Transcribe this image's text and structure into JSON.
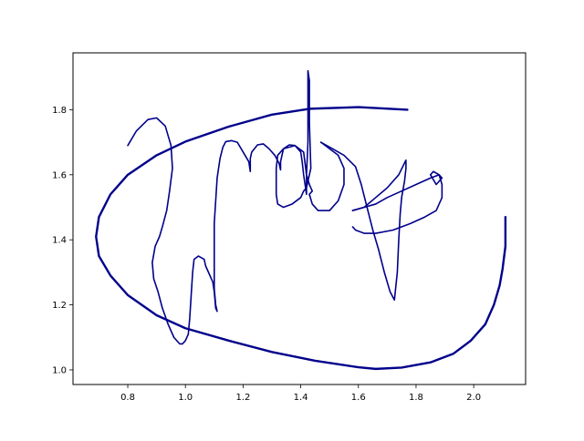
{
  "chart_data": {
    "type": "line",
    "title": "",
    "xlabel": "",
    "ylabel": "",
    "xlim": [
      0.61,
      2.18
    ],
    "ylim": [
      0.955,
      1.975
    ],
    "x_ticks": [
      0.8,
      1.0,
      1.2,
      1.4,
      1.6,
      1.8,
      2.0
    ],
    "x_tick_labels": [
      "0.8",
      "1.0",
      "1.2",
      "1.4",
      "1.6",
      "1.8",
      "2.0"
    ],
    "y_ticks": [
      1.0,
      1.2,
      1.4,
      1.6,
      1.8
    ],
    "y_tick_labels": [
      "1.0",
      "1.2",
      "1.4",
      "1.6",
      "1.8"
    ],
    "grid": false,
    "legend": "none",
    "colors": {
      "stroke": "#00008b",
      "axes": "#000000",
      "background": "#ffffff"
    },
    "series": [
      {
        "style": "thick",
        "x": [
          1.77,
          1.6,
          1.43,
          1.3,
          1.15,
          1.0,
          0.9,
          0.8,
          0.74,
          0.7,
          0.69,
          0.7,
          0.74,
          0.8,
          0.9,
          1.0,
          1.15,
          1.3,
          1.45,
          1.6,
          1.66,
          1.75,
          1.85,
          1.93,
          1.99,
          2.04,
          2.07,
          2.09,
          2.1,
          2.11,
          2.11
        ],
        "y": [
          1.8,
          1.808,
          1.803,
          1.785,
          1.748,
          1.702,
          1.66,
          1.6,
          1.54,
          1.47,
          1.41,
          1.35,
          1.29,
          1.23,
          1.168,
          1.128,
          1.09,
          1.055,
          1.028,
          1.008,
          1.003,
          1.007,
          1.023,
          1.05,
          1.09,
          1.14,
          1.2,
          1.26,
          1.31,
          1.38,
          1.47
        ]
      },
      {
        "style": "thin",
        "x": [
          0.8,
          0.83,
          0.87,
          0.9,
          0.93,
          0.95,
          0.955,
          0.945,
          0.935,
          0.92,
          0.91,
          0.895,
          0.885,
          0.89,
          0.905,
          0.92,
          0.94,
          0.96,
          0.98,
          0.99,
          1.0,
          1.01,
          1.015,
          1.02,
          1.025,
          1.03,
          1.045,
          1.065,
          1.07,
          1.08,
          1.095,
          1.1,
          1.105,
          1.11,
          1.105,
          1.1,
          1.1,
          1.1,
          1.1,
          1.105,
          1.11,
          1.12,
          1.13,
          1.14,
          1.16,
          1.18,
          1.2,
          1.22,
          1.225,
          1.225,
          1.23,
          1.25,
          1.27,
          1.29,
          1.31,
          1.325,
          1.33,
          1.33,
          1.34,
          1.36,
          1.38,
          1.4,
          1.405,
          1.41,
          1.415,
          1.42,
          1.42,
          1.425,
          1.425,
          1.425,
          1.43,
          1.43,
          1.435,
          1.425,
          1.42,
          1.41,
          1.4,
          1.37,
          1.34,
          1.32,
          1.315,
          1.315,
          1.315,
          1.32,
          1.34,
          1.38,
          1.41,
          1.42,
          1.43,
          1.44,
          1.43
        ],
        "y": [
          1.69,
          1.735,
          1.77,
          1.775,
          1.75,
          1.69,
          1.62,
          1.55,
          1.49,
          1.44,
          1.41,
          1.38,
          1.33,
          1.28,
          1.24,
          1.19,
          1.14,
          1.1,
          1.08,
          1.08,
          1.09,
          1.11,
          1.16,
          1.23,
          1.3,
          1.34,
          1.35,
          1.34,
          1.32,
          1.3,
          1.27,
          1.24,
          1.19,
          1.18,
          1.2,
          1.25,
          1.32,
          1.38,
          1.45,
          1.52,
          1.59,
          1.65,
          1.685,
          1.702,
          1.705,
          1.7,
          1.67,
          1.64,
          1.61,
          1.65,
          1.67,
          1.692,
          1.695,
          1.68,
          1.66,
          1.635,
          1.615,
          1.64,
          1.68,
          1.692,
          1.69,
          1.67,
          1.64,
          1.6,
          1.57,
          1.54,
          1.6,
          1.7,
          1.85,
          1.92,
          1.89,
          1.76,
          1.62,
          1.58,
          1.56,
          1.55,
          1.53,
          1.51,
          1.5,
          1.51,
          1.54,
          1.58,
          1.62,
          1.66,
          1.68,
          1.69,
          1.67,
          1.6,
          1.57,
          1.55,
          1.54
        ]
      },
      {
        "style": "thin",
        "x": [
          1.47,
          1.5,
          1.53,
          1.55,
          1.55,
          1.53,
          1.5,
          1.46,
          1.44,
          1.43
        ],
        "y": [
          1.7,
          1.68,
          1.66,
          1.62,
          1.57,
          1.52,
          1.49,
          1.49,
          1.51,
          1.54
        ]
      },
      {
        "style": "thin",
        "x": [
          1.47,
          1.5,
          1.55,
          1.59,
          1.61,
          1.63,
          1.65,
          1.67,
          1.69,
          1.71,
          1.725,
          1.735,
          1.74,
          1.745,
          1.75,
          1.76,
          1.765,
          1.765,
          1.74,
          1.7,
          1.66,
          1.62,
          1.6,
          1.58
        ],
        "y": [
          1.7,
          1.685,
          1.66,
          1.625,
          1.57,
          1.5,
          1.43,
          1.37,
          1.3,
          1.24,
          1.215,
          1.3,
          1.4,
          1.48,
          1.53,
          1.58,
          1.62,
          1.645,
          1.6,
          1.56,
          1.53,
          1.5,
          1.495,
          1.49
        ]
      },
      {
        "style": "thin",
        "x": [
          1.58,
          1.62,
          1.66,
          1.7,
          1.75,
          1.8,
          1.85,
          1.88,
          1.89,
          1.87,
          1.85,
          1.86,
          1.88,
          1.89,
          1.89,
          1.87,
          1.83,
          1.78,
          1.72,
          1.66,
          1.62,
          1.59,
          1.58
        ],
        "y": [
          1.49,
          1.5,
          1.51,
          1.53,
          1.55,
          1.57,
          1.59,
          1.6,
          1.59,
          1.57,
          1.6,
          1.61,
          1.6,
          1.57,
          1.53,
          1.49,
          1.47,
          1.45,
          1.43,
          1.42,
          1.42,
          1.43,
          1.44
        ]
      }
    ]
  }
}
